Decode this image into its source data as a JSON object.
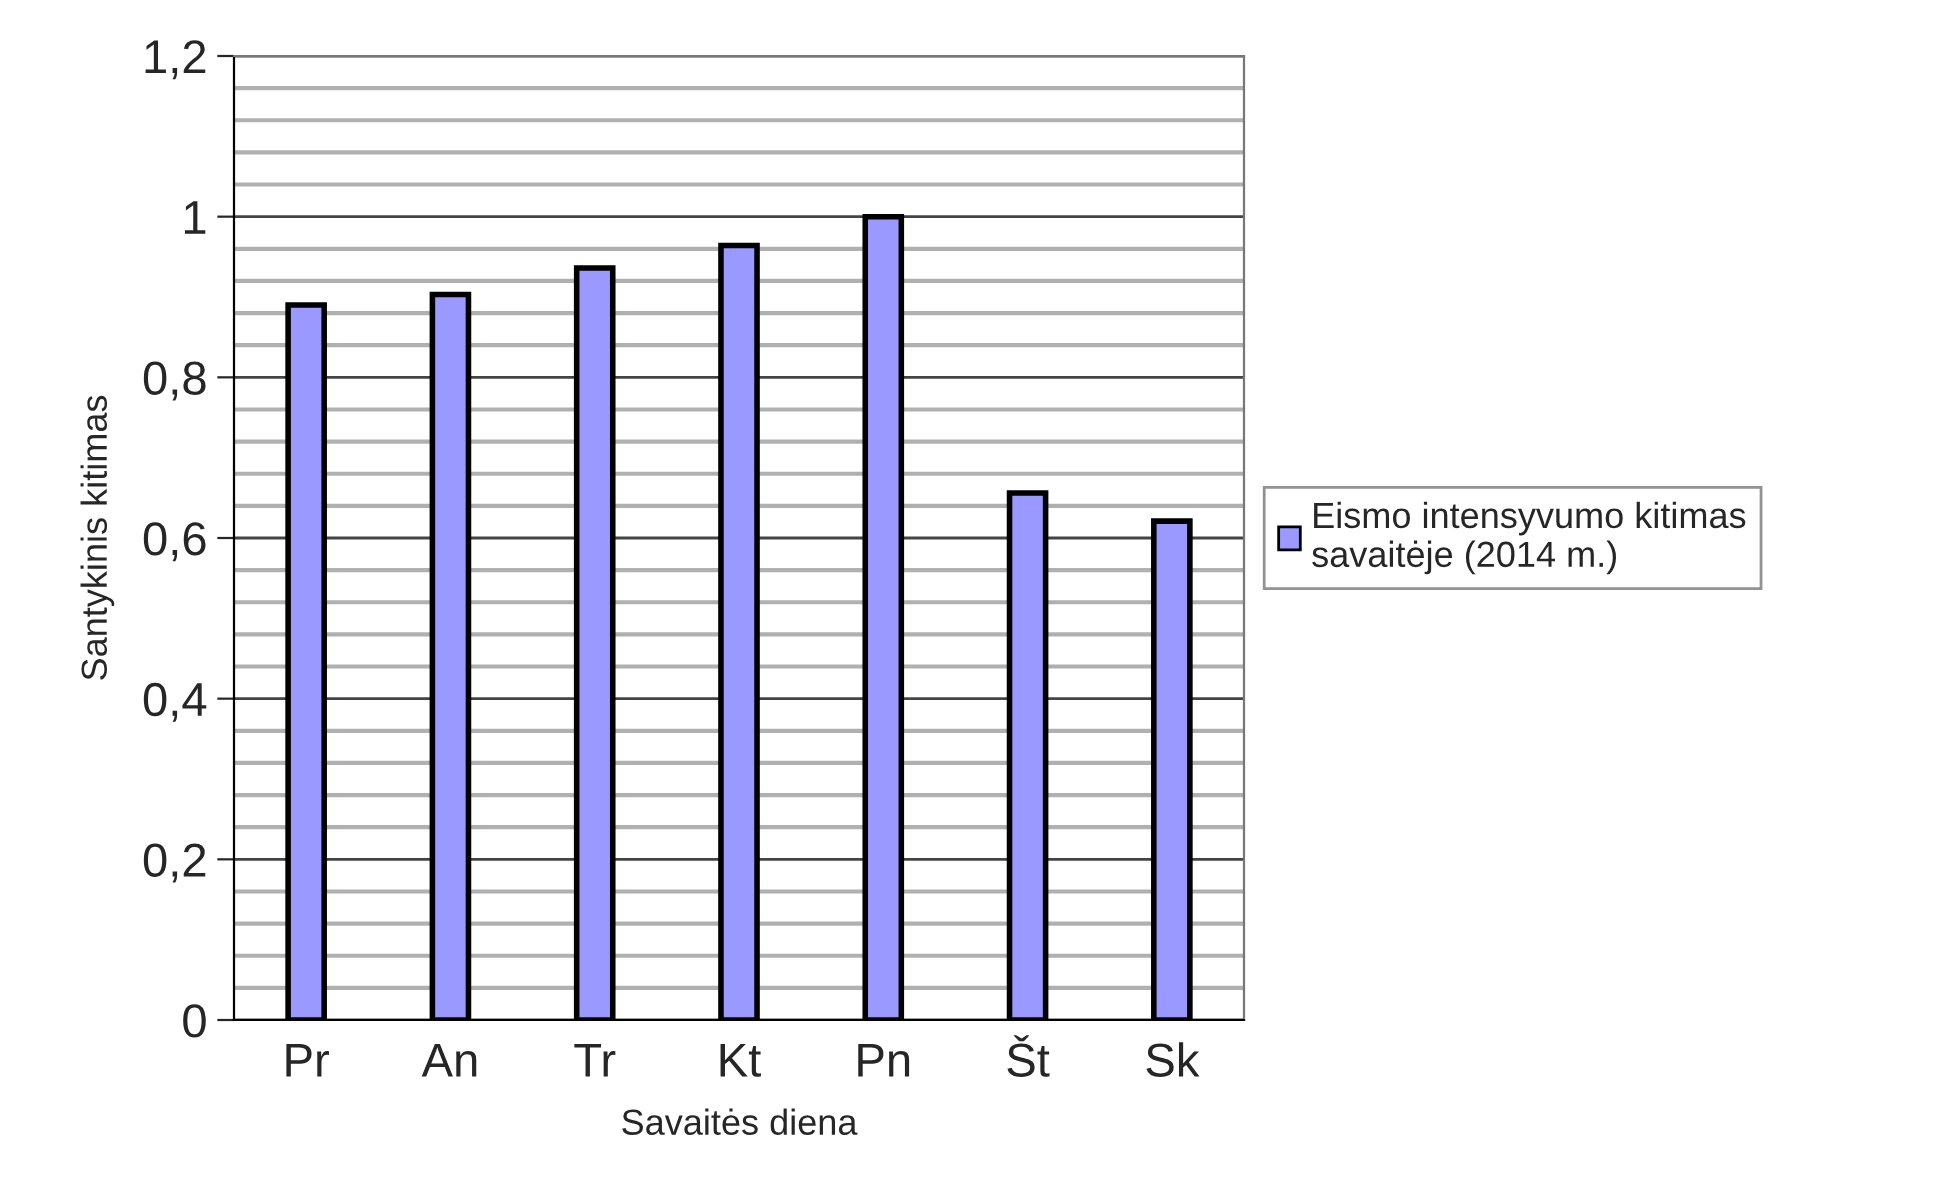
{
  "chart_data": {
    "type": "bar",
    "xlabel": "Savaitės diena",
    "ylabel": "Santykinis kitimas",
    "categories": [
      "Pr",
      "An",
      "Tr",
      "Kt",
      "Pn",
      "Št",
      "Sk"
    ],
    "series": [
      {
        "name": "Eismo intensyvumo kitimas\nsavaitėje (2014 m.)",
        "color": "#9999ff",
        "values": [
          0.89,
          0.903,
          0.936,
          0.964,
          1.0,
          0.656,
          0.621
        ]
      }
    ],
    "ylim": [
      0,
      1.2
    ],
    "yticks": [
      {
        "value": 0,
        "label": "0"
      },
      {
        "value": 0.2,
        "label": "0,2"
      },
      {
        "value": 0.4,
        "label": "0,4"
      },
      {
        "value": 0.6,
        "label": "0,6"
      },
      {
        "value": 0.8,
        "label": "0,8"
      },
      {
        "value": 1,
        "label": "1"
      },
      {
        "value": 1.2,
        "label": "1,2"
      }
    ],
    "grid": "y",
    "legend": "right"
  }
}
